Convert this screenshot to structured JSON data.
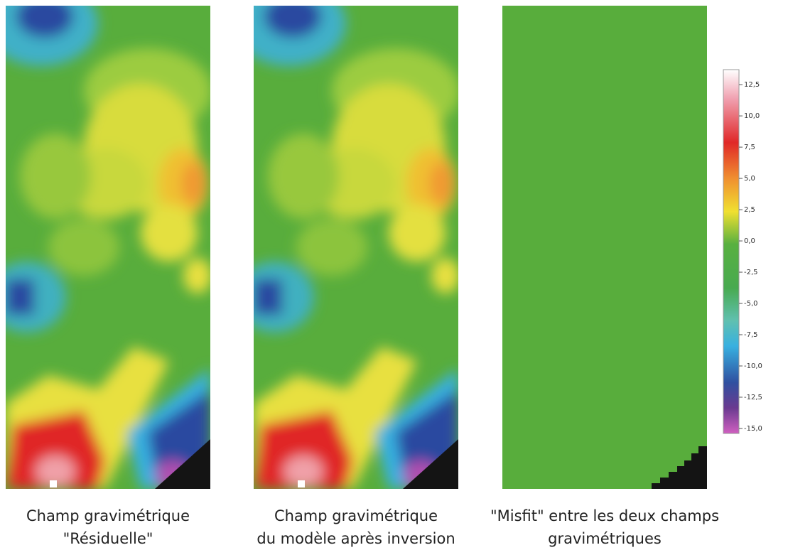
{
  "panels": [
    {
      "caption": [
        "Champ gravimétrique",
        "\"Résiduelle\""
      ]
    },
    {
      "caption": [
        "Champ gravimétrique",
        "du modèle après inversion"
      ]
    },
    {
      "caption": [
        "\"Misfit\" entre les deux champs",
        "gravimétriques"
      ]
    }
  ],
  "colorbar": {
    "ylim": [
      -15.4,
      13.7
    ],
    "yticks": [
      {
        "value": 12.5,
        "label": "12,5"
      },
      {
        "value": 10,
        "label": "10,0"
      },
      {
        "value": 7.5,
        "label": "7,5"
      },
      {
        "value": 5,
        "label": "5,0"
      },
      {
        "value": 2.5,
        "label": "2,5"
      },
      {
        "value": 0,
        "label": "0,0"
      },
      {
        "value": -2.5,
        "label": "-2,5"
      },
      {
        "value": -5,
        "label": "-5,0"
      },
      {
        "value": -7.5,
        "label": "-7,5"
      },
      {
        "value": -10,
        "label": "-10,0"
      },
      {
        "value": -12.5,
        "label": "-12,5"
      },
      {
        "value": -15,
        "label": "-15,0"
      }
    ]
  }
}
